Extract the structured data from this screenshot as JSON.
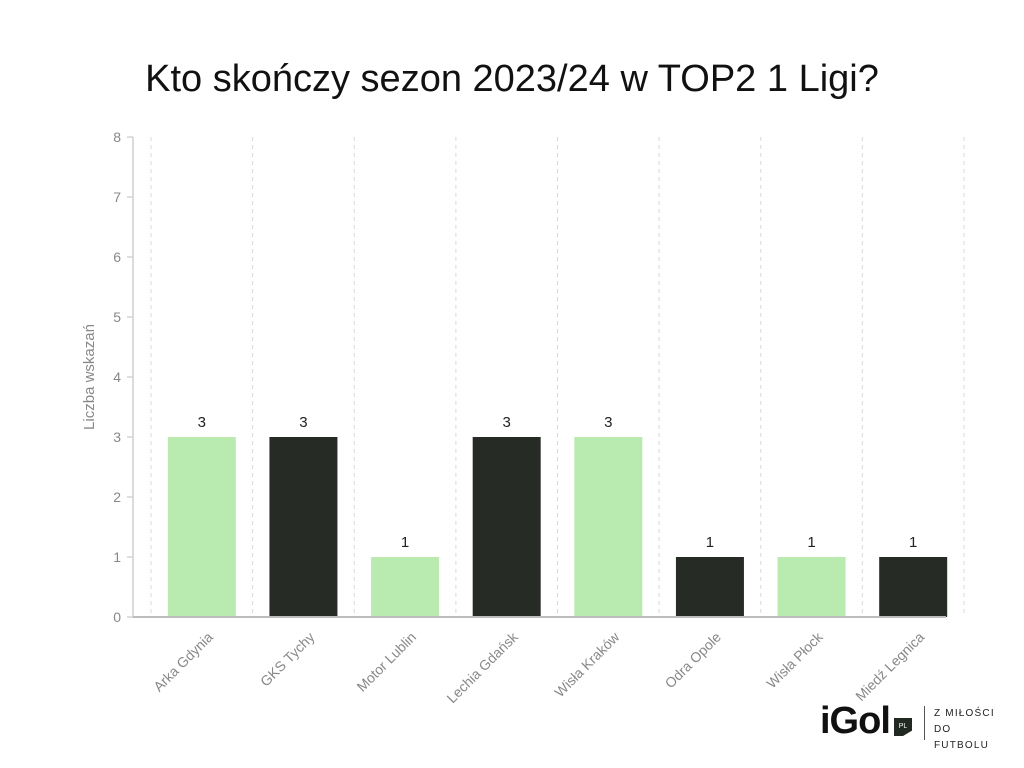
{
  "title": "Kto skończy sezon 2023/24 w TOP2 1 Ligi?",
  "chart_data": {
    "type": "bar",
    "title": "Kto skończy sezon 2023/24 w TOP2 1 Ligi?",
    "categories": [
      "Arka Gdynia",
      "GKS Tychy",
      "Motor Lublin",
      "Lechia Gdańsk",
      "Wisła Kraków",
      "Odra Opole",
      "Wisła Płock",
      "Miedź Legnica"
    ],
    "values": [
      3,
      3,
      1,
      3,
      3,
      1,
      1,
      1
    ],
    "ylabel": "Liczba wskazań",
    "xlabel": "",
    "ylim": [
      0,
      8
    ],
    "yticks": [
      0,
      1,
      2,
      3,
      4,
      5,
      6,
      7,
      8
    ],
    "grid": "vertical dashed",
    "colors": [
      "#b9ebb0",
      "#272b26",
      "#b9ebb0",
      "#272b26",
      "#b9ebb0",
      "#272b26",
      "#b9ebb0",
      "#272b26"
    ]
  },
  "brand": {
    "logo": "iGol",
    "badge": "PL",
    "tagline_1": "Z MIŁOŚCI",
    "tagline_2": "DO FUTBOLU"
  }
}
